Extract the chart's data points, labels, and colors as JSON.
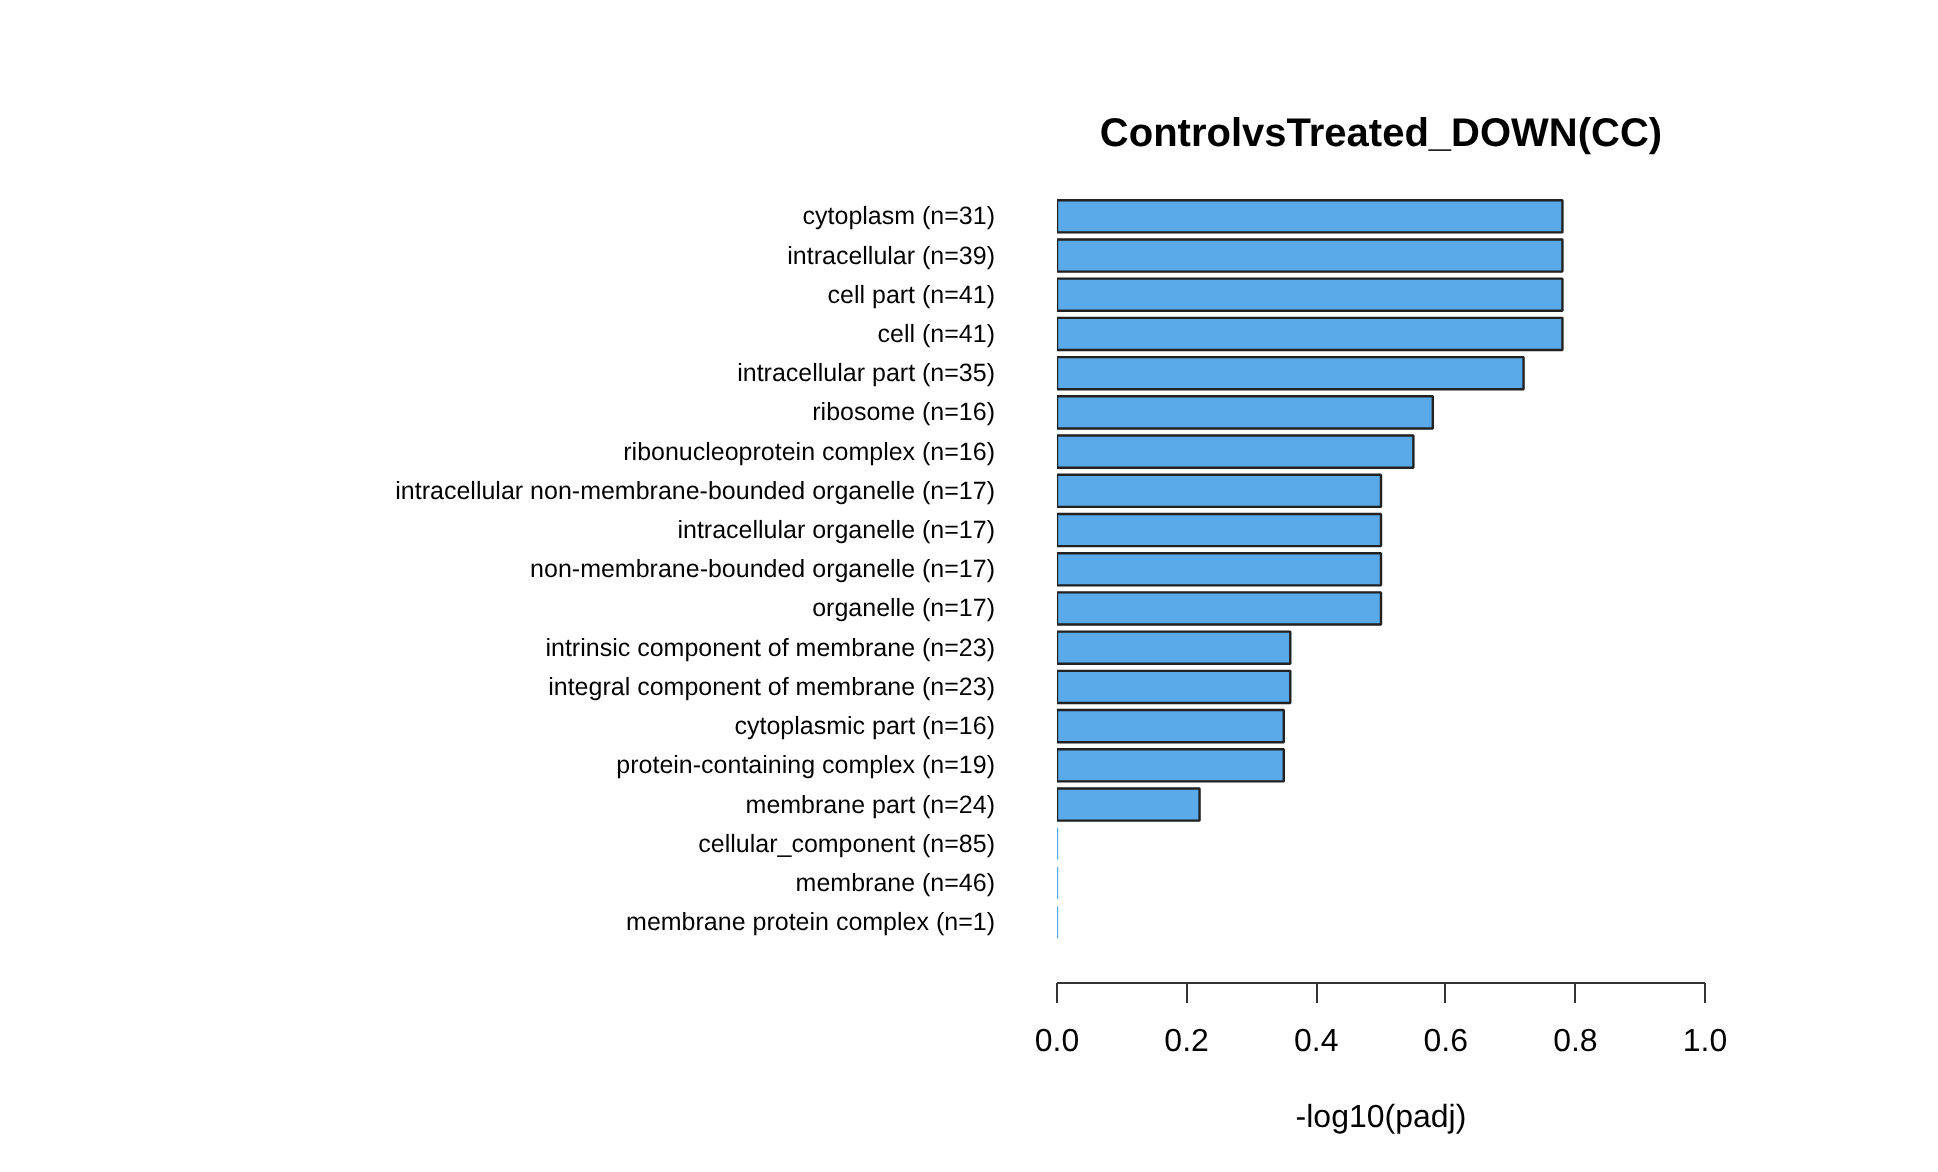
{
  "chart_data": {
    "type": "bar",
    "orientation": "horizontal",
    "title": "ControlvsTreated_DOWN(CC)",
    "xlabel": "-log10(padj)",
    "categories": [
      "cytoplasm (n=31)",
      "intracellular (n=39)",
      "cell part (n=41)",
      "cell (n=41)",
      "intracellular part (n=35)",
      "ribosome (n=16)",
      "ribonucleoprotein complex (n=16)",
      "intracellular non-membrane-bounded organelle (n=17)",
      "intracellular organelle (n=17)",
      "non-membrane-bounded organelle (n=17)",
      "organelle (n=17)",
      "intrinsic component of membrane (n=23)",
      "integral component of membrane (n=23)",
      "cytoplasmic part (n=16)",
      "protein-containing complex (n=19)",
      "membrane part (n=24)",
      "cellular_component (n=85)",
      "membrane (n=46)",
      "membrane protein complex (n=1)"
    ],
    "values": [
      0.78,
      0.78,
      0.78,
      0.78,
      0.72,
      0.58,
      0.55,
      0.5,
      0.5,
      0.5,
      0.5,
      0.36,
      0.36,
      0.35,
      0.35,
      0.22,
      0,
      0,
      0
    ],
    "color": "#5aaaea",
    "xlim": [
      0,
      1
    ],
    "xticks": [
      {
        "value": 0,
        "label": "0.0"
      },
      {
        "value": 0.2,
        "label": "0.2"
      },
      {
        "value": 0.4,
        "label": "0.4"
      },
      {
        "value": 0.6,
        "label": "0.6"
      },
      {
        "value": 0.8,
        "label": "0.8"
      },
      {
        "value": 1,
        "label": "1.0"
      }
    ],
    "grid": false
  }
}
